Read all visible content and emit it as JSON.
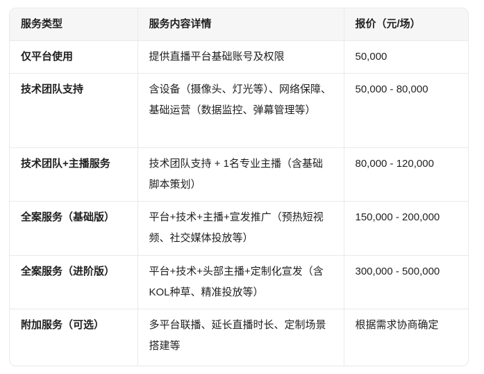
{
  "table": {
    "headers": [
      "服务类型",
      "服务内容详情",
      "报价（元/场）"
    ],
    "rows": [
      {
        "type": "仅平台使用",
        "detail": "提供直播平台基础账号及权限",
        "price": "50,000"
      },
      {
        "type": "技术团队支持",
        "detail": "含设备（摄像头、灯光等）、网络保障、基础运营（数据监控、弹幕管理等）",
        "price": "50,000 - 80,000"
      },
      {
        "type": "技术团队+主播服务",
        "detail": "技术团队支持 + 1名专业主播（含基础脚本策划）",
        "price": "80,000 - 120,000"
      },
      {
        "type": "全案服务（基础版）",
        "detail": "平台+技术+主播+宣发推广（预热短视频、社交媒体投放等）",
        "price": "150,000 - 200,000"
      },
      {
        "type": "全案服务（进阶版）",
        "detail": "平台+技术+头部主播+定制化宣发（含KOL种草、精准投放等）",
        "price": "300,000 - 500,000"
      },
      {
        "type": "附加服务（可选）",
        "detail": "多平台联播、延长直播时长、定制场景搭建等",
        "price": "根据需求协商确定"
      }
    ]
  },
  "colors": {
    "header_background": "#f6f6f6",
    "border": "#e9e9e9",
    "text": "#1f1f1f",
    "page_background": "#ffffff"
  }
}
